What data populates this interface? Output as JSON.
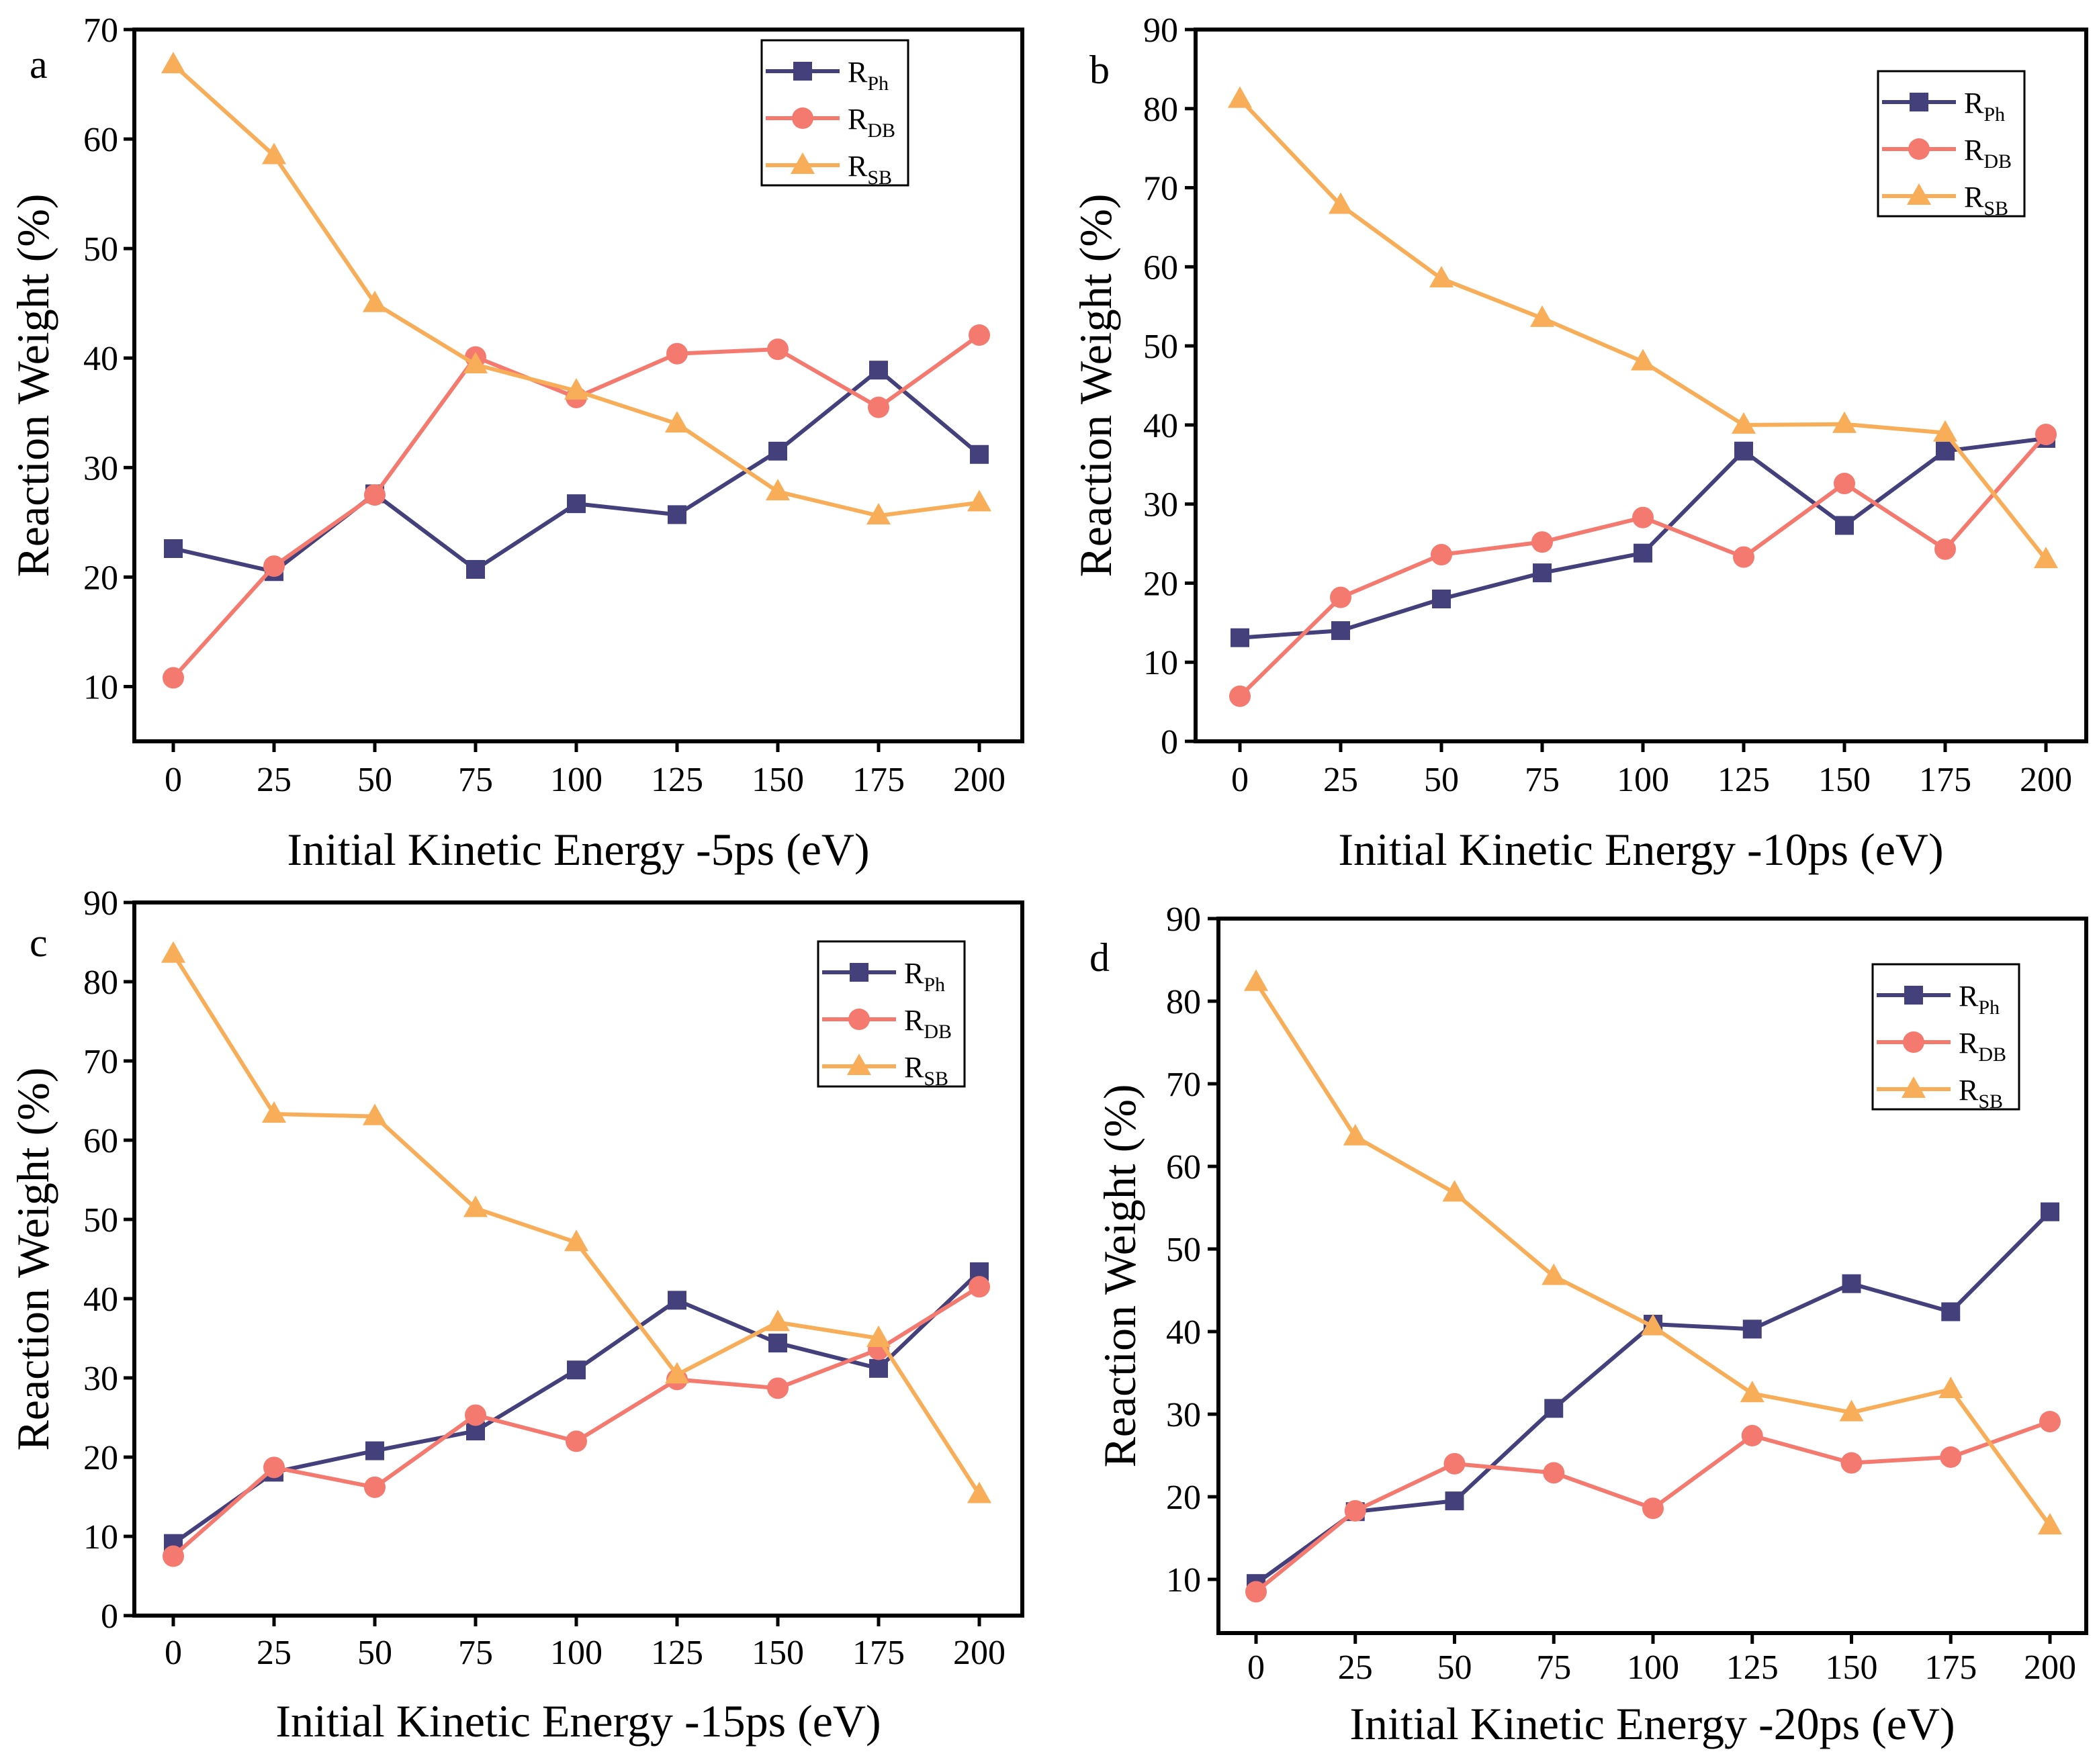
{
  "chart_data": [
    {
      "type": "line",
      "panel_label": "a",
      "title": "",
      "xlabel": "Initial Kinetic Energy -5ps (eV)",
      "ylabel": "Reaction Weight (%)",
      "x": [
        0,
        25,
        50,
        75,
        100,
        125,
        150,
        175,
        200
      ],
      "xticks": [
        "0",
        "25",
        "50",
        "75",
        "100",
        "125",
        "150",
        "175",
        "200"
      ],
      "yticks": [
        10,
        20,
        30,
        40,
        50,
        60,
        70
      ],
      "ylim": [
        5,
        70
      ],
      "xlim": [
        -9.5,
        210
      ],
      "grid": false,
      "legend": "top-right",
      "series": [
        {
          "name": "R_Ph",
          "label_main": "R",
          "label_sub": "Ph",
          "marker": "square",
          "color": "#44407c",
          "values": [
            22.6,
            20.5,
            27.6,
            20.7,
            26.7,
            25.7,
            31.5,
            38.9,
            31.2
          ]
        },
        {
          "name": "R_DB",
          "label_main": "R",
          "label_sub": "DB",
          "marker": "circle",
          "color": "#f47a70",
          "values": [
            10.8,
            21.0,
            27.5,
            40.1,
            36.4,
            40.4,
            40.8,
            35.5,
            42.1
          ]
        },
        {
          "name": "R_SB",
          "label_main": "R",
          "label_sub": "SB",
          "marker": "triangle",
          "color": "#f8ae59",
          "values": [
            66.8,
            58.5,
            45.0,
            39.4,
            37.0,
            34.0,
            27.8,
            25.6,
            26.8
          ]
        }
      ]
    },
    {
      "type": "line",
      "panel_label": "b",
      "title": "",
      "xlabel": "Initial Kinetic Energy -10ps (eV)",
      "ylabel": "Reaction Weight (%)",
      "x": [
        0,
        25,
        50,
        75,
        100,
        125,
        150,
        175,
        200
      ],
      "xticks": [
        "0",
        "25",
        "50",
        "75",
        "100",
        "125",
        "150",
        "175",
        "200"
      ],
      "yticks": [
        0,
        10,
        20,
        30,
        40,
        50,
        60,
        70,
        80,
        90
      ],
      "ylim": [
        0,
        90
      ],
      "xlim": [
        -9.5,
        210
      ],
      "grid": false,
      "legend": "top-right",
      "series": [
        {
          "name": "R_Ph",
          "label_main": "R",
          "label_sub": "Ph",
          "marker": "square",
          "color": "#44407c",
          "values": [
            13.1,
            14.0,
            18.0,
            21.3,
            23.8,
            36.7,
            27.3,
            36.7,
            38.3
          ]
        },
        {
          "name": "R_DB",
          "label_main": "R",
          "label_sub": "DB",
          "marker": "circle",
          "color": "#f47a70",
          "values": [
            5.7,
            18.2,
            23.6,
            25.2,
            28.3,
            23.3,
            32.6,
            24.3,
            38.8
          ]
        },
        {
          "name": "R_SB",
          "label_main": "R",
          "label_sub": "SB",
          "marker": "triangle",
          "color": "#f8ae59",
          "values": [
            81.2,
            67.8,
            58.5,
            53.5,
            48.0,
            40.0,
            40.1,
            39.0,
            23.0
          ]
        }
      ]
    },
    {
      "type": "line",
      "panel_label": "c",
      "title": "",
      "xlabel": "Initial Kinetic Energy -15ps (eV)",
      "ylabel": "Reaction Weight (%)",
      "x": [
        0,
        25,
        50,
        75,
        100,
        125,
        150,
        175,
        200
      ],
      "xticks": [
        "0",
        "25",
        "50",
        "75",
        "100",
        "125",
        "150",
        "175",
        "200"
      ],
      "yticks": [
        0,
        10,
        20,
        30,
        40,
        50,
        60,
        70,
        80,
        90
      ],
      "ylim": [
        0,
        90
      ],
      "xlim": [
        -9.5,
        210
      ],
      "grid": false,
      "legend": "top-right",
      "series": [
        {
          "name": "R_Ph",
          "label_main": "R",
          "label_sub": "Ph",
          "marker": "square",
          "color": "#44407c",
          "values": [
            9.1,
            18.1,
            20.8,
            23.3,
            31.0,
            39.8,
            34.4,
            31.2,
            43.4
          ]
        },
        {
          "name": "R_DB",
          "label_main": "R",
          "label_sub": "DB",
          "marker": "circle",
          "color": "#f47a70",
          "values": [
            7.5,
            18.7,
            16.2,
            25.3,
            22.0,
            29.8,
            28.7,
            33.6,
            41.5
          ]
        },
        {
          "name": "R_SB",
          "label_main": "R",
          "label_sub": "SB",
          "marker": "triangle",
          "color": "#f8ae59",
          "values": [
            83.5,
            63.3,
            63.0,
            51.4,
            47.1,
            30.4,
            37.0,
            35.0,
            15.3
          ]
        }
      ]
    },
    {
      "type": "line",
      "panel_label": "d",
      "title": "",
      "xlabel": "Initial Kinetic Energy -20ps (eV)",
      "ylabel": "Reaction Weight (%)",
      "x": [
        0,
        25,
        50,
        75,
        100,
        125,
        150,
        175,
        200
      ],
      "xticks": [
        "0",
        "25",
        "50",
        "75",
        "100",
        "125",
        "150",
        "175",
        "200"
      ],
      "yticks": [
        10,
        20,
        30,
        40,
        50,
        60,
        70,
        80,
        90
      ],
      "ylim": [
        3.5,
        90
      ],
      "xlim": [
        -9.5,
        210
      ],
      "grid": false,
      "legend": "top-right",
      "series": [
        {
          "name": "R_Ph",
          "label_main": "R",
          "label_sub": "Ph",
          "marker": "square",
          "color": "#44407c",
          "values": [
            9.5,
            18.2,
            19.5,
            30.7,
            40.9,
            40.3,
            45.8,
            42.4,
            54.5
          ]
        },
        {
          "name": "R_DB",
          "label_main": "R",
          "label_sub": "DB",
          "marker": "circle",
          "color": "#f47a70",
          "values": [
            8.5,
            18.3,
            24.0,
            22.9,
            18.6,
            27.4,
            24.1,
            24.8,
            29.1
          ]
        },
        {
          "name": "R_SB",
          "label_main": "R",
          "label_sub": "SB",
          "marker": "triangle",
          "color": "#f8ae59",
          "values": [
            82.3,
            63.6,
            56.8,
            46.7,
            40.6,
            32.5,
            30.2,
            33.0,
            16.5
          ]
        }
      ]
    }
  ]
}
